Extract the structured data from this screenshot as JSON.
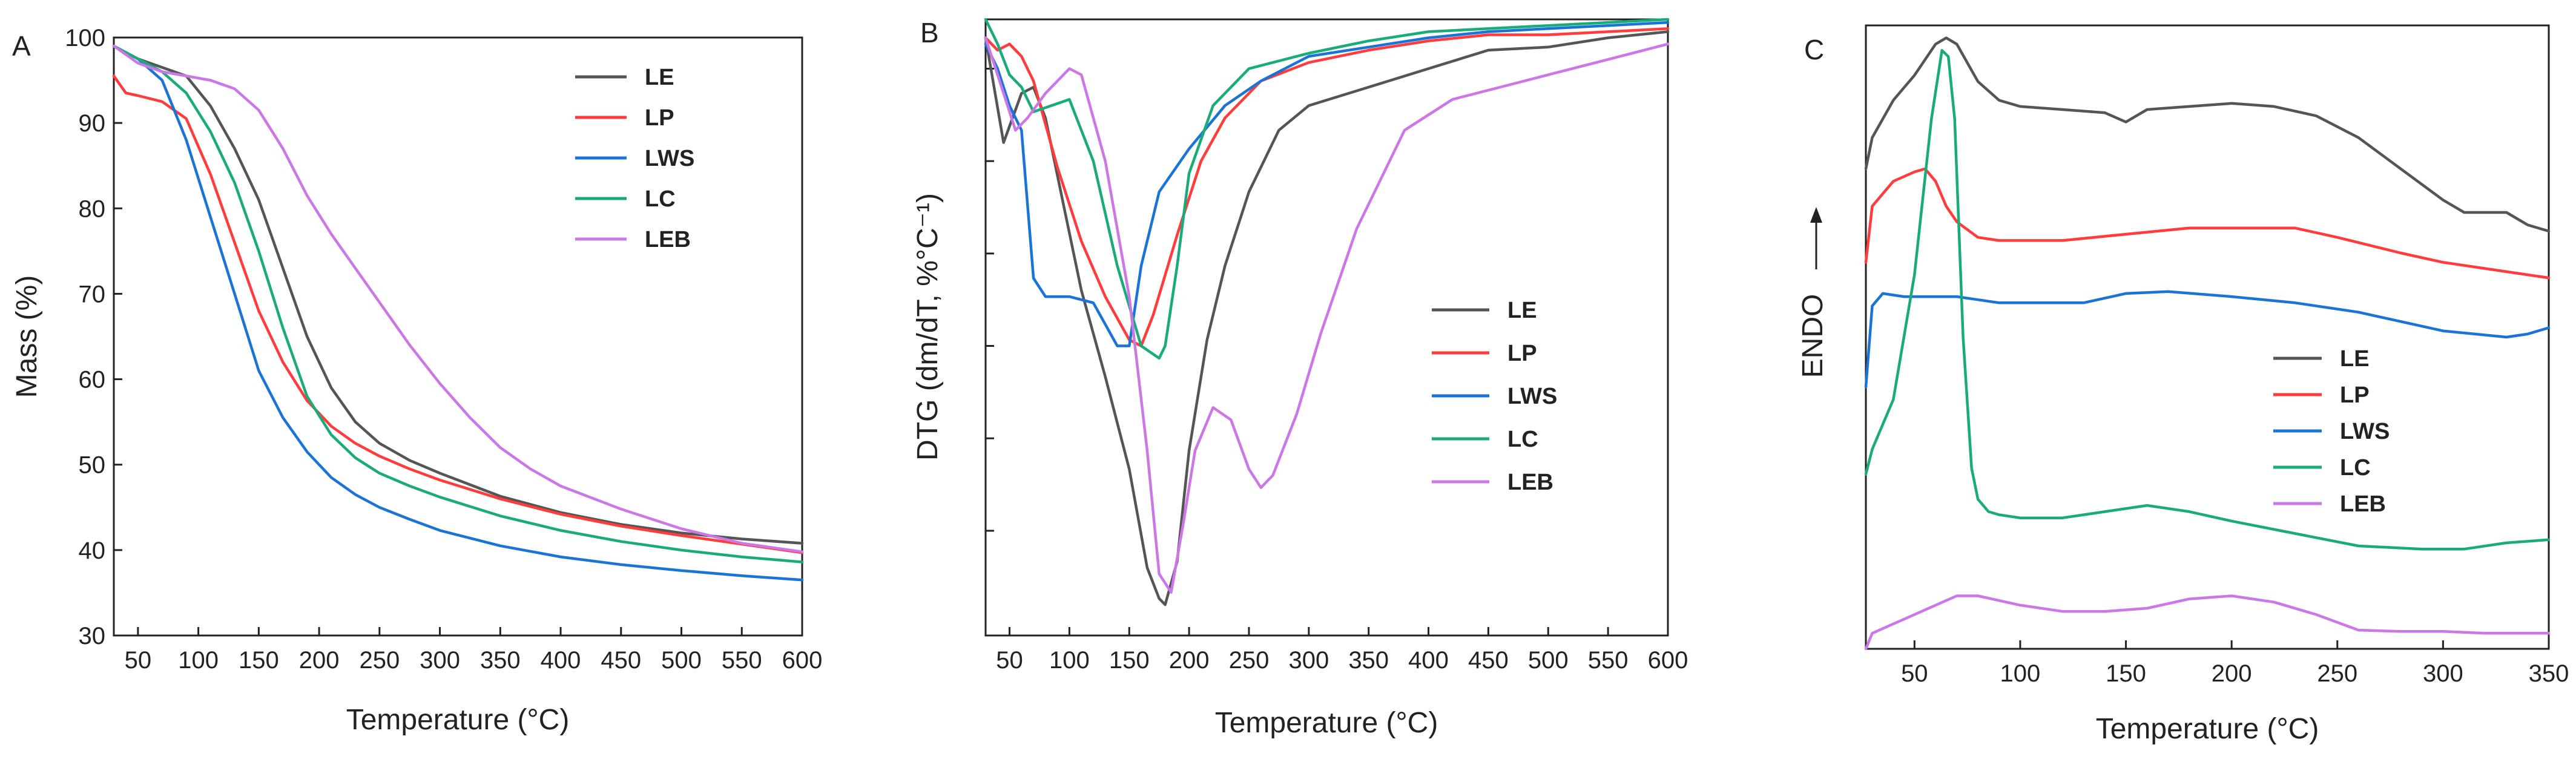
{
  "colors": {
    "LE": "#555555",
    "LP": "#ff3b3b",
    "LWS": "#1a74d6",
    "LC": "#1aab7a",
    "LEB": "#cc77e6"
  },
  "chart_data": [
    {
      "panel": "A",
      "type": "line",
      "title": "",
      "xlabel": "Temperature (°C)",
      "ylabel": "Mass (%)",
      "xlim": [
        30,
        600
      ],
      "ylim": [
        30,
        100
      ],
      "xticks": [
        50,
        100,
        150,
        200,
        250,
        300,
        350,
        400,
        450,
        500,
        550,
        600
      ],
      "yticks": [
        30,
        40,
        50,
        60,
        70,
        80,
        90,
        100
      ],
      "legend_position": "top-right",
      "series": [
        {
          "name": "LE",
          "x": [
            30,
            50,
            70,
            90,
            110,
            130,
            150,
            170,
            190,
            210,
            230,
            250,
            275,
            300,
            350,
            400,
            450,
            500,
            550,
            600
          ],
          "y": [
            99,
            97.5,
            96.5,
            95.5,
            92,
            87,
            81,
            73,
            65,
            59,
            55,
            52.5,
            50.5,
            49,
            46.3,
            44.4,
            43,
            42,
            41.3,
            40.8
          ]
        },
        {
          "name": "LP",
          "x": [
            30,
            40,
            50,
            70,
            90,
            110,
            130,
            150,
            170,
            190,
            210,
            230,
            250,
            275,
            300,
            350,
            400,
            450,
            500,
            550,
            600
          ],
          "y": [
            95.5,
            93.5,
            93.2,
            92.5,
            90.5,
            84,
            76,
            68,
            62,
            57.5,
            54.5,
            52.5,
            51,
            49.5,
            48.2,
            46,
            44.2,
            42.8,
            41.7,
            40.7,
            39.7
          ]
        },
        {
          "name": "LWS",
          "x": [
            30,
            50,
            70,
            90,
            110,
            130,
            150,
            170,
            190,
            210,
            230,
            250,
            275,
            300,
            350,
            400,
            450,
            500,
            550,
            600
          ],
          "y": [
            99,
            97.5,
            95,
            88,
            79,
            70,
            61,
            55.5,
            51.5,
            48.5,
            46.5,
            45,
            43.6,
            42.3,
            40.5,
            39.2,
            38.3,
            37.6,
            37,
            36.5
          ]
        },
        {
          "name": "LC",
          "x": [
            30,
            50,
            70,
            90,
            110,
            130,
            150,
            170,
            190,
            210,
            230,
            250,
            275,
            300,
            350,
            400,
            450,
            500,
            550,
            600
          ],
          "y": [
            99,
            97.5,
            96,
            93.5,
            89,
            83,
            75,
            66,
            58,
            53.5,
            50.8,
            49,
            47.5,
            46.2,
            44,
            42.3,
            41,
            40,
            39.2,
            38.6
          ]
        },
        {
          "name": "LEB",
          "x": [
            30,
            50,
            70,
            90,
            110,
            130,
            150,
            170,
            190,
            210,
            230,
            250,
            275,
            300,
            325,
            350,
            375,
            400,
            450,
            500,
            550,
            600
          ],
          "y": [
            99,
            97,
            96,
            95.5,
            95,
            94,
            91.5,
            87,
            81.5,
            77,
            73,
            69,
            64,
            59.5,
            55.5,
            52,
            49.5,
            47.5,
            44.8,
            42.5,
            40.8,
            39.8
          ]
        }
      ]
    },
    {
      "panel": "B",
      "type": "line",
      "title": "",
      "xlabel": "Temperature (°C)",
      "ylabel": "DTG (dm/dT, %°C⁻¹)",
      "xlim": [
        30,
        600
      ],
      "ylim": [
        0,
        100
      ],
      "xticks": [
        50,
        100,
        150,
        200,
        250,
        300,
        350,
        400,
        450,
        500,
        550,
        600
      ],
      "ytick_positions": [
        17,
        32,
        47,
        62,
        77,
        92
      ],
      "legend_position": "center-right",
      "series": [
        {
          "name": "LE",
          "x": [
            30,
            45,
            60,
            70,
            80,
            95,
            110,
            130,
            150,
            165,
            175,
            180,
            190,
            200,
            215,
            230,
            250,
            275,
            300,
            350,
            400,
            450,
            500,
            550,
            600
          ],
          "y": [
            97,
            80,
            88,
            89,
            84,
            70,
            56,
            42,
            27,
            11,
            6,
            5,
            12,
            30,
            48,
            60,
            72,
            82,
            86,
            89,
            92,
            95,
            95.5,
            97,
            98
          ]
        },
        {
          "name": "LP",
          "x": [
            30,
            40,
            50,
            60,
            70,
            90,
            110,
            130,
            150,
            160,
            170,
            190,
            210,
            230,
            260,
            300,
            350,
            400,
            450,
            500,
            550,
            600
          ],
          "y": [
            97,
            95,
            96,
            94,
            90,
            76,
            64,
            55,
            48,
            47,
            52,
            65,
            77,
            84,
            90,
            93,
            95,
            96.5,
            97.5,
            97.5,
            98,
            98.5
          ]
        },
        {
          "name": "LWS",
          "x": [
            30,
            40,
            50,
            60,
            70,
            80,
            100,
            120,
            140,
            150,
            160,
            175,
            200,
            230,
            260,
            300,
            350,
            400,
            450,
            500,
            550,
            600
          ],
          "y": [
            96,
            92,
            86,
            82,
            58,
            55,
            55,
            54,
            47,
            47,
            60,
            72,
            79,
            86,
            90,
            94,
            95.5,
            97,
            98,
            98.5,
            99,
            99.5
          ]
        },
        {
          "name": "LC",
          "x": [
            30,
            40,
            50,
            60,
            70,
            85,
            100,
            120,
            140,
            160,
            175,
            180,
            190,
            200,
            220,
            250,
            300,
            350,
            400,
            450,
            500,
            550,
            600
          ],
          "y": [
            100,
            96,
            91,
            89,
            85,
            86,
            87,
            77,
            60,
            47,
            45,
            47,
            60,
            75,
            86,
            92,
            94.5,
            96.5,
            98,
            98.5,
            99,
            99.5,
            100
          ]
        },
        {
          "name": "LEB",
          "x": [
            30,
            40,
            55,
            65,
            80,
            100,
            110,
            130,
            150,
            165,
            175,
            185,
            195,
            205,
            220,
            235,
            250,
            260,
            270,
            290,
            310,
            340,
            380,
            420,
            460,
            500,
            540,
            580,
            600
          ],
          "y": [
            97,
            91,
            82,
            84,
            88,
            92,
            91,
            77,
            55,
            30,
            10,
            7,
            18,
            30,
            37,
            35,
            27,
            24,
            26,
            36,
            49,
            66,
            82,
            87,
            89,
            91,
            93,
            95,
            96
          ]
        }
      ]
    },
    {
      "panel": "C",
      "type": "line",
      "title": "",
      "xlabel": "Temperature (°C)",
      "ylabel": "ENDO",
      "xlim": [
        27,
        350
      ],
      "ylim": [
        0,
        100
      ],
      "xticks": [
        50,
        100,
        150,
        200,
        250,
        300,
        350
      ],
      "legend_position": "bottom-right",
      "series": [
        {
          "name": "LE",
          "x": [
            27,
            30,
            40,
            50,
            60,
            65,
            70,
            80,
            90,
            100,
            120,
            140,
            150,
            160,
            180,
            200,
            220,
            240,
            260,
            280,
            300,
            310,
            320,
            330,
            340,
            350
          ],
          "y": [
            77,
            82,
            88,
            92,
            97,
            98,
            97,
            91,
            88,
            87,
            86.5,
            86,
            84.5,
            86.5,
            87,
            87.5,
            87,
            85.5,
            82,
            77,
            72,
            70,
            70,
            70,
            68,
            67
          ]
        },
        {
          "name": "LP",
          "x": [
            27,
            30,
            40,
            50,
            55,
            60,
            65,
            70,
            80,
            90,
            100,
            120,
            150,
            180,
            200,
            230,
            250,
            280,
            300,
            330,
            350
          ],
          "y": [
            62,
            71,
            75,
            76.5,
            77,
            75,
            71,
            68.5,
            66,
            65.5,
            65.5,
            65.5,
            66.5,
            67.5,
            67.5,
            67.5,
            66,
            63.5,
            62,
            60.5,
            59.5
          ]
        },
        {
          "name": "LWS",
          "x": [
            27,
            30,
            35,
            45,
            60,
            70,
            80,
            90,
            100,
            130,
            150,
            170,
            200,
            230,
            260,
            300,
            330,
            340,
            350
          ],
          "y": [
            42,
            55,
            57,
            56.5,
            56.5,
            56.5,
            56,
            55.5,
            55.5,
            55.5,
            57,
            57.3,
            56.5,
            55.5,
            54,
            51,
            50,
            50.5,
            51.5
          ]
        },
        {
          "name": "LC",
          "x": [
            27,
            30,
            40,
            50,
            58,
            63,
            66,
            69,
            73,
            77,
            80,
            85,
            90,
            100,
            120,
            140,
            160,
            180,
            200,
            230,
            260,
            290,
            310,
            330,
            350
          ],
          "y": [
            28,
            32,
            40,
            60,
            85,
            96,
            95,
            85,
            50,
            29,
            24,
            22,
            21.5,
            21,
            21,
            22,
            23,
            22,
            20.5,
            18.5,
            16.5,
            16,
            16,
            17,
            17.5
          ]
        },
        {
          "name": "LEB",
          "x": [
            27,
            30,
            40,
            50,
            60,
            70,
            80,
            100,
            120,
            140,
            160,
            180,
            200,
            220,
            240,
            260,
            280,
            300,
            320,
            340,
            350
          ],
          "y": [
            0,
            2.5,
            4,
            5.5,
            7,
            8.5,
            8.5,
            7,
            6,
            6,
            6.5,
            8,
            8.5,
            7.5,
            5.5,
            3,
            2.8,
            2.8,
            2.5,
            2.5,
            2.5
          ]
        }
      ]
    }
  ]
}
